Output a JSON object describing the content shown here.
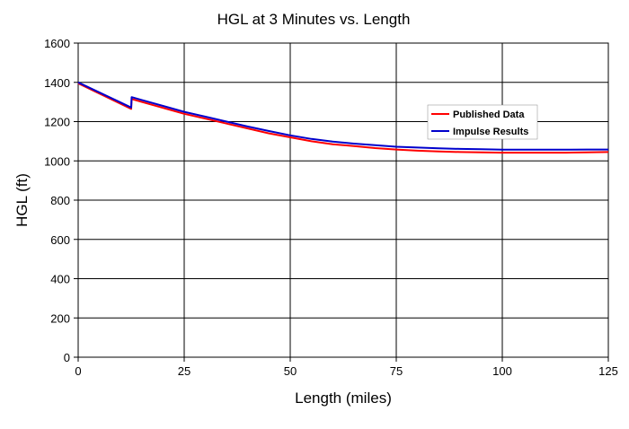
{
  "chart_data": {
    "type": "line",
    "title": "HGL at 3 Minutes vs. Length",
    "xlabel": "Length (miles)",
    "ylabel": "HGL (ft)",
    "xlim": [
      0,
      125
    ],
    "ylim": [
      0,
      1600
    ],
    "xticks": [
      0,
      25,
      50,
      75,
      100,
      125
    ],
    "yticks": [
      0,
      200,
      400,
      600,
      800,
      1000,
      1200,
      1400,
      1600
    ],
    "grid": true,
    "legend_position": "right",
    "series": [
      {
        "name": "Published Data",
        "color": "#ff0000",
        "points": [
          [
            0,
            1395
          ],
          [
            12.5,
            1265
          ],
          [
            12.6,
            1315
          ],
          [
            15,
            1300
          ],
          [
            20,
            1270
          ],
          [
            25,
            1240
          ],
          [
            30,
            1215
          ],
          [
            35,
            1190
          ],
          [
            40,
            1165
          ],
          [
            45,
            1140
          ],
          [
            50,
            1120
          ],
          [
            55,
            1100
          ],
          [
            60,
            1085
          ],
          [
            65,
            1075
          ],
          [
            70,
            1065
          ],
          [
            75,
            1058
          ],
          [
            80,
            1052
          ],
          [
            85,
            1048
          ],
          [
            90,
            1045
          ],
          [
            95,
            1043
          ],
          [
            100,
            1042
          ],
          [
            105,
            1042
          ],
          [
            110,
            1042
          ],
          [
            115,
            1042
          ],
          [
            120,
            1043
          ],
          [
            125,
            1045
          ]
        ]
      },
      {
        "name": "Impulse Results",
        "color": "#0000cc",
        "points": [
          [
            0,
            1400
          ],
          [
            12.5,
            1272
          ],
          [
            12.6,
            1325
          ],
          [
            15,
            1310
          ],
          [
            20,
            1280
          ],
          [
            25,
            1250
          ],
          [
            30,
            1225
          ],
          [
            35,
            1200
          ],
          [
            40,
            1175
          ],
          [
            45,
            1152
          ],
          [
            50,
            1130
          ],
          [
            55,
            1112
          ],
          [
            60,
            1098
          ],
          [
            65,
            1088
          ],
          [
            70,
            1080
          ],
          [
            75,
            1072
          ],
          [
            80,
            1068
          ],
          [
            85,
            1064
          ],
          [
            90,
            1061
          ],
          [
            95,
            1059
          ],
          [
            100,
            1057
          ],
          [
            105,
            1057
          ],
          [
            110,
            1057
          ],
          [
            115,
            1057
          ],
          [
            120,
            1058
          ],
          [
            125,
            1058
          ]
        ]
      }
    ]
  }
}
